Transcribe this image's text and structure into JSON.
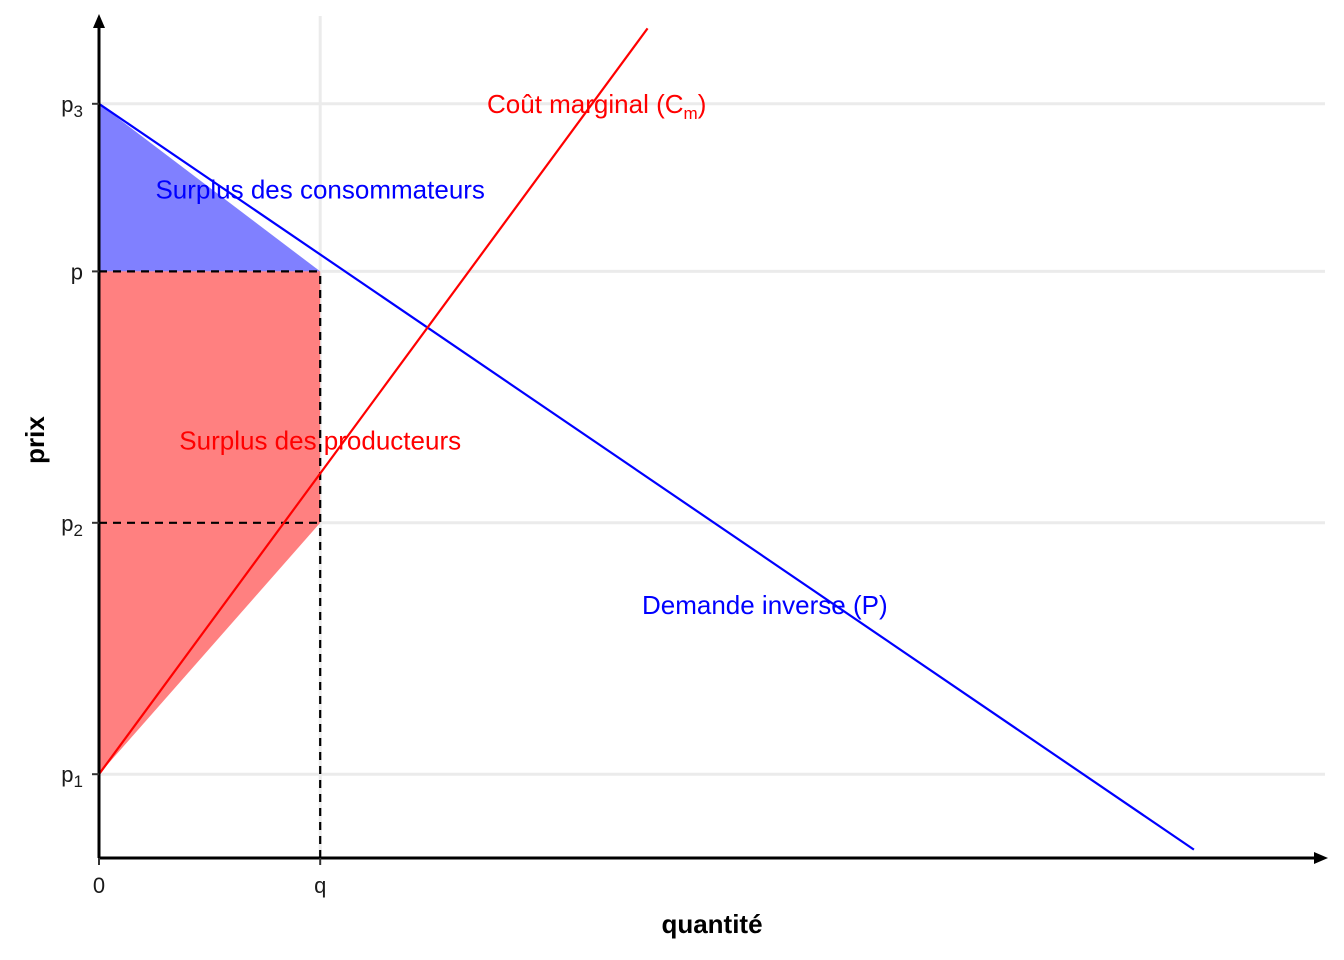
{
  "chart_data": {
    "type": "line",
    "xlabel": "quantité",
    "ylabel": "prix",
    "x_ticks": [
      {
        "value": 0,
        "label": "0"
      },
      {
        "value": 1,
        "label": "q"
      }
    ],
    "y_ticks": [
      {
        "value": 1,
        "label": "p",
        "sub": "1",
        "name": "p1"
      },
      {
        "value": 2.5,
        "label": "p",
        "sub": "2",
        "name": "p2"
      },
      {
        "value": 4,
        "label": "p",
        "sub": "",
        "name": "p"
      },
      {
        "value": 5,
        "label": "p",
        "sub": "3",
        "name": "p3"
      }
    ],
    "xlim": [
      0,
      5.52
    ],
    "ylim": [
      0.5,
      5.5
    ],
    "grid": "horizontal",
    "series": [
      {
        "name": "Demande inverse (P)",
        "x": [
          0,
          4.95
        ],
        "y": [
          5,
          0.55
        ],
        "color": "#0000ff"
      },
      {
        "name": "Coût marginal (Cm)",
        "x": [
          0,
          2.48
        ],
        "y": [
          1,
          5.45
        ],
        "color": "#ff0000"
      }
    ],
    "areas": [
      {
        "name": "Surplus des consommateurs",
        "x": [
          0,
          0,
          1
        ],
        "y": [
          5,
          4,
          4
        ],
        "color": "#8080ff"
      },
      {
        "name": "Surplus des producteurs",
        "x": [
          0,
          0,
          1,
          1
        ],
        "y": [
          1,
          4,
          4,
          2.5
        ],
        "color": "#ff8080"
      }
    ],
    "guides": [
      {
        "from": [
          0,
          4
        ],
        "to": [
          1,
          4
        ]
      },
      {
        "from": [
          0,
          2.5
        ],
        "to": [
          1,
          2.5
        ]
      },
      {
        "from": [
          1,
          0.5
        ],
        "to": [
          1,
          4
        ]
      }
    ],
    "annotations": [
      {
        "text": "Surplus des consommateurs",
        "x": 1,
        "y": 4.49,
        "color": "#0000ff"
      },
      {
        "text": "Surplus des producteurs",
        "x": 1,
        "y": 2.99,
        "color": "#ff0000"
      },
      {
        "text": "Coût marginal (C",
        "sub": "m",
        "close": ")",
        "x": 2.25,
        "y": 5.0,
        "color": "#ff0000"
      },
      {
        "text": "Demande inverse (P)",
        "x": 3.01,
        "y": 2.01,
        "color": "#0000ff"
      }
    ]
  }
}
